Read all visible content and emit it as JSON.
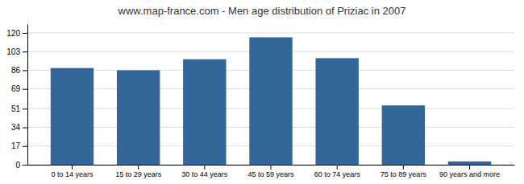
{
  "chart_data": {
    "type": "bar",
    "title": "www.map-france.com - Men age distribution of Priziac in 2007",
    "categories": [
      "0 to 14 years",
      "15 to 29 years",
      "30 to 44 years",
      "45 to 59 years",
      "60 to 74 years",
      "75 to 89 years",
      "90 years and more"
    ],
    "values": [
      88,
      86,
      96,
      116,
      97,
      54,
      3
    ],
    "color": "#336699",
    "ylim": [
      0,
      128
    ],
    "yticks": [
      0,
      17,
      34,
      51,
      69,
      86,
      103,
      120
    ],
    "grid": true
  }
}
